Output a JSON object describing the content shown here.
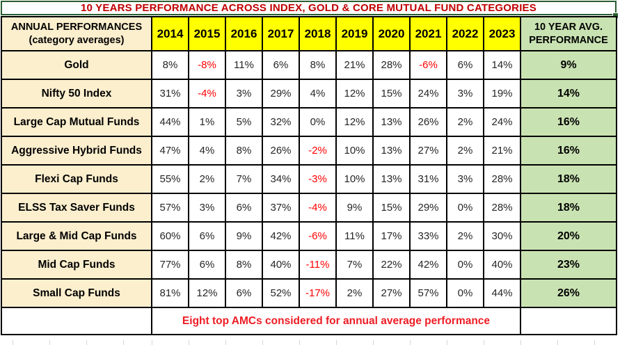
{
  "title": "10 YEARS PERFORMANCE ACROSS INDEX, GOLD & CORE MUTUAL FUND CATEGORIES",
  "columns": {
    "row_header_line1": "ANNUAL PERFORMANCES",
    "row_header_line2": "(category averages)",
    "years": [
      "2014",
      "2015",
      "2016",
      "2017",
      "2018",
      "2019",
      "2020",
      "2021",
      "2022",
      "2023"
    ],
    "avg_header_line1": "10 YEAR AVG.",
    "avg_header_line2": "PERFORMANCE"
  },
  "rows": [
    {
      "category": "Gold",
      "values": [
        "8%",
        "-8%",
        "11%",
        "6%",
        "8%",
        "21%",
        "28%",
        "-6%",
        "6%",
        "14%"
      ],
      "avg": "9%"
    },
    {
      "category": "Nifty 50 Index",
      "values": [
        "31%",
        "-4%",
        "3%",
        "29%",
        "4%",
        "12%",
        "15%",
        "24%",
        "3%",
        "19%"
      ],
      "avg": "14%"
    },
    {
      "category": "Large Cap Mutual Funds",
      "values": [
        "44%",
        "1%",
        "5%",
        "32%",
        "0%",
        "12%",
        "13%",
        "26%",
        "2%",
        "24%"
      ],
      "avg": "16%"
    },
    {
      "category": "Aggressive Hybrid Funds",
      "values": [
        "47%",
        "4%",
        "8%",
        "26%",
        "-2%",
        "10%",
        "13%",
        "27%",
        "2%",
        "21%"
      ],
      "avg": "16%"
    },
    {
      "category": "Flexi Cap Funds",
      "values": [
        "55%",
        "2%",
        "7%",
        "34%",
        "-3%",
        "10%",
        "13%",
        "31%",
        "3%",
        "28%"
      ],
      "avg": "18%"
    },
    {
      "category": "ELSS Tax Saver Funds",
      "values": [
        "57%",
        "3%",
        "6%",
        "37%",
        "-4%",
        "9%",
        "15%",
        "29%",
        "0%",
        "28%"
      ],
      "avg": "18%"
    },
    {
      "category": "Large & Mid Cap Funds",
      "values": [
        "60%",
        "6%",
        "9%",
        "42%",
        "-6%",
        "11%",
        "17%",
        "33%",
        "2%",
        "30%"
      ],
      "avg": "20%"
    },
    {
      "category": "Mid Cap Funds",
      "values": [
        "77%",
        "6%",
        "8%",
        "40%",
        "-11%",
        "7%",
        "22%",
        "42%",
        "0%",
        "40%"
      ],
      "avg": "23%"
    },
    {
      "category": "Small Cap Funds",
      "values": [
        "81%",
        "12%",
        "6%",
        "52%",
        "-17%",
        "2%",
        "27%",
        "57%",
        "0%",
        "44%"
      ],
      "avg": "26%"
    }
  ],
  "footer_note": "Eight top AMCs considered for annual average performance",
  "colors": {
    "title_text": "#C00000",
    "negative_value": "#FF0000",
    "footer_text": "#ED1C24",
    "year_header_bg": "#FFFF00",
    "category_bg": "#FCEFCE",
    "avg_bg": "#C9E2B2",
    "selection_border": "#2A5E2F",
    "cell_border": "#000000"
  },
  "chart_data": {
    "type": "table",
    "title": "10 YEARS PERFORMANCE ACROSS INDEX, GOLD & CORE MUTUAL FUND CATEGORIES",
    "unit": "%",
    "columns": [
      "ANNUAL PERFORMANCES (category averages)",
      "2014",
      "2015",
      "2016",
      "2017",
      "2018",
      "2019",
      "2020",
      "2021",
      "2022",
      "2023",
      "10 YEAR AVG. PERFORMANCE"
    ],
    "series": [
      {
        "name": "Gold",
        "values": [
          8,
          -8,
          11,
          6,
          8,
          21,
          28,
          -6,
          6,
          14
        ],
        "avg_10yr": 9
      },
      {
        "name": "Nifty 50 Index",
        "values": [
          31,
          -4,
          3,
          29,
          4,
          12,
          15,
          24,
          3,
          19
        ],
        "avg_10yr": 14
      },
      {
        "name": "Large Cap Mutual Funds",
        "values": [
          44,
          1,
          5,
          32,
          0,
          12,
          13,
          26,
          2,
          24
        ],
        "avg_10yr": 16
      },
      {
        "name": "Aggressive Hybrid Funds",
        "values": [
          47,
          4,
          8,
          26,
          -2,
          10,
          13,
          27,
          2,
          21
        ],
        "avg_10yr": 16
      },
      {
        "name": "Flexi Cap Funds",
        "values": [
          55,
          2,
          7,
          34,
          -3,
          10,
          13,
          31,
          3,
          28
        ],
        "avg_10yr": 18
      },
      {
        "name": "ELSS Tax Saver Funds",
        "values": [
          57,
          3,
          6,
          37,
          -4,
          9,
          15,
          29,
          0,
          28
        ],
        "avg_10yr": 18
      },
      {
        "name": "Large & Mid Cap Funds",
        "values": [
          60,
          6,
          9,
          42,
          -6,
          11,
          17,
          33,
          2,
          30
        ],
        "avg_10yr": 20
      },
      {
        "name": "Mid Cap Funds",
        "values": [
          77,
          6,
          8,
          40,
          -11,
          7,
          22,
          42,
          0,
          40
        ],
        "avg_10yr": 23
      },
      {
        "name": "Small Cap Funds",
        "values": [
          81,
          12,
          6,
          52,
          -17,
          2,
          27,
          57,
          0,
          44
        ],
        "avg_10yr": 26
      }
    ],
    "x": [
      "2014",
      "2015",
      "2016",
      "2017",
      "2018",
      "2019",
      "2020",
      "2021",
      "2022",
      "2023"
    ],
    "annotations": [
      "Eight top AMCs considered for annual average performance"
    ]
  }
}
